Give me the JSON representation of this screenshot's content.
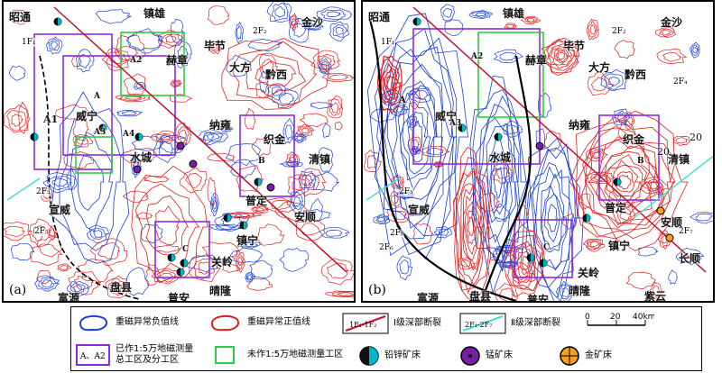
{
  "panels": {
    "a": {
      "label": "(a)"
    },
    "b": {
      "label": "(b)"
    }
  },
  "places": {
    "zhaotong": "昭通",
    "zhenxiong": "镇雄",
    "jinsha": "金沙",
    "bijie": "毕节",
    "hezhang": "赫章",
    "dafang": "大方",
    "qianxi": "黔西",
    "weining": "威宁",
    "nayong": "纳雍",
    "zhijin": "织金",
    "shuicheng": "水城",
    "qingzhen": "清镇",
    "xuanwei": "宣威",
    "puding": "普定",
    "anshun": "安顺",
    "zhenning": "镇宁",
    "changshun": "长顺",
    "guanling": "关岭",
    "fuyuan": "富源",
    "panxian": "盘县",
    "pu_an": "普安",
    "qinglong": "晴隆",
    "ziyun": "紫云",
    "a1": "A1",
    "a": "A",
    "a2": "A2",
    "a3": "A3",
    "a4": "A4",
    "b": "B",
    "c": "C"
  },
  "faults": {
    "f1": "1F₁",
    "f2": "2F₂",
    "f3": "2F₃",
    "f4": "2F₄",
    "f5": "2F₅",
    "f6": "2F₆",
    "f7": "2F₇"
  },
  "contour_labels": {
    "c20": "20",
    "c20b": "20"
  },
  "legend": {
    "neg_contour": "重磁异常负值线",
    "pos_contour": "重磁异常正值线",
    "deep_fault_1": "Ⅰ级深部断裂",
    "deep_fault_1_sym": "1F₁-1F₂",
    "deep_fault_2": "Ⅱ级深部断裂",
    "deep_fault_2_sym": "2F₁-2F₇",
    "surveyed_area": "已作1:5万地磁测量总工区及分工区",
    "surveyed_sym": "A、A2",
    "unsurveyed_area": "未作1:5万地磁测量工区",
    "pbzn_deposit": "铅锌矿床",
    "mn_deposit": "锰矿床",
    "au_deposit": "金矿床",
    "scale_0": "0",
    "scale_20": "20",
    "scale_40": "40km"
  },
  "colors": {
    "negative": "#1a3fd6",
    "positive": "#e01e1e",
    "purple": "#8a2be2",
    "green": "#2ecc40",
    "fault": "#c8102e"
  }
}
